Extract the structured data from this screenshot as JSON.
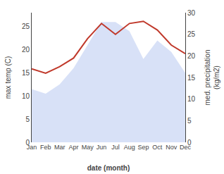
{
  "chart_data": {
    "type": "combo",
    "categories": [
      "Jan",
      "Feb",
      "Mar",
      "Apr",
      "May",
      "Jun",
      "Jul",
      "Aug",
      "Sep",
      "Oct",
      "Nov",
      "Dec"
    ],
    "series": [
      {
        "type": "area",
        "color": "#b8c8f0",
        "values": [
          11.5,
          10.5,
          12.5,
          16.0,
          21.0,
          26.0,
          26.0,
          24.0,
          18.0,
          22.0,
          19.5,
          15.0
        ]
      },
      {
        "type": "line",
        "color": "#c0392b",
        "axis": "y2",
        "values": [
          17.0,
          16.0,
          17.5,
          19.5,
          24.0,
          27.5,
          25.0,
          27.5,
          28.0,
          26.0,
          22.5,
          20.5
        ]
      }
    ],
    "xlabel": "date (month)",
    "ylabel": "max temp (C)",
    "y2label": "med. precipitation\n(kg/m2)",
    "ylim": [
      0,
      28
    ],
    "yticks": [
      0,
      5,
      10,
      15,
      20,
      25
    ],
    "y2lim": [
      0,
      30
    ],
    "y2ticks": [
      0,
      5,
      10,
      15,
      20,
      25,
      30
    ],
    "grid": false
  }
}
